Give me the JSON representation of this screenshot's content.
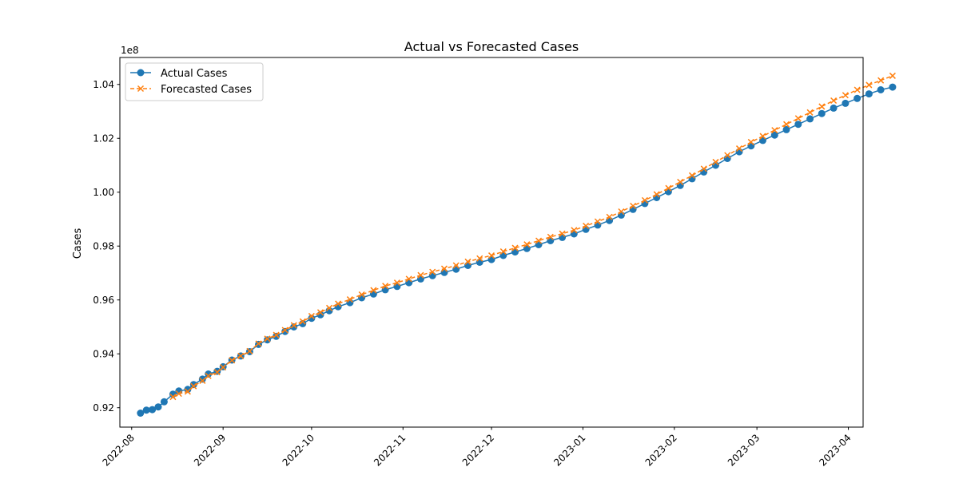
{
  "chart_data": {
    "type": "line",
    "title": "Actual vs Forecasted Cases",
    "xlabel": "",
    "ylabel": "Cases",
    "y_offset_label": "1e8",
    "y_scale": 100000000,
    "x_axis_type": "date",
    "xlim": [
      "2022-07-28",
      "2023-04-06"
    ],
    "ylim": [
      0.9128,
      1.05
    ],
    "x_ticks": [
      "2022-08-01",
      "2022-09-01",
      "2022-10-01",
      "2022-11-01",
      "2022-12-01",
      "2023-01-01",
      "2023-02-01",
      "2023-03-01",
      "2023-04-01"
    ],
    "x_tick_labels": [
      "2022-08",
      "2022-09",
      "2022-10",
      "2022-11",
      "2022-12",
      "2023-01",
      "2023-02",
      "2023-03",
      "2023-04"
    ],
    "y_ticks": [
      0.92,
      0.94,
      0.96,
      0.98,
      1.0,
      1.02,
      1.04
    ],
    "y_tick_labels": [
      "0.92",
      "0.94",
      "0.96",
      "0.98",
      "1.00",
      "1.02",
      "1.04"
    ],
    "grid": false,
    "legend_position": "top-left",
    "colors": {
      "actual": "#1f77b4",
      "forecast": "#ff7f0e"
    },
    "series": [
      {
        "name": "Actual Cases",
        "marker": "o",
        "linestyle": "solid",
        "points": [
          [
            "2022-08-04",
            0.918
          ],
          [
            "2022-08-06",
            0.9191
          ],
          [
            "2022-08-08",
            0.9193
          ],
          [
            "2022-08-10",
            0.9203
          ],
          [
            "2022-08-12",
            0.9222
          ],
          [
            "2022-08-15",
            0.925
          ],
          [
            "2022-08-17",
            0.9262
          ],
          [
            "2022-08-20",
            0.9268
          ],
          [
            "2022-08-22",
            0.9286
          ],
          [
            "2022-08-25",
            0.9306
          ],
          [
            "2022-08-27",
            0.9325
          ],
          [
            "2022-08-30",
            0.9335
          ],
          [
            "2022-09-01",
            0.9352
          ],
          [
            "2022-09-04",
            0.9377
          ],
          [
            "2022-09-07",
            0.9392
          ],
          [
            "2022-09-10",
            0.9408
          ],
          [
            "2022-09-13",
            0.9435
          ],
          [
            "2022-09-16",
            0.9452
          ],
          [
            "2022-09-19",
            0.9465
          ],
          [
            "2022-09-22",
            0.9483
          ],
          [
            "2022-09-25",
            0.95
          ],
          [
            "2022-09-28",
            0.9512
          ],
          [
            "2022-10-01",
            0.9532
          ],
          [
            "2022-10-04",
            0.9545
          ],
          [
            "2022-10-07",
            0.956
          ],
          [
            "2022-10-10",
            0.9575
          ],
          [
            "2022-10-14",
            0.959
          ],
          [
            "2022-10-18",
            0.9608
          ],
          [
            "2022-10-22",
            0.9622
          ],
          [
            "2022-10-26",
            0.9638
          ],
          [
            "2022-10-30",
            0.965
          ],
          [
            "2022-11-03",
            0.9664
          ],
          [
            "2022-11-07",
            0.9678
          ],
          [
            "2022-11-11",
            0.969
          ],
          [
            "2022-11-15",
            0.9702
          ],
          [
            "2022-11-19",
            0.9714
          ],
          [
            "2022-11-23",
            0.9728
          ],
          [
            "2022-11-27",
            0.974
          ],
          [
            "2022-12-01",
            0.975
          ],
          [
            "2022-12-05",
            0.9765
          ],
          [
            "2022-12-09",
            0.9778
          ],
          [
            "2022-12-13",
            0.9791
          ],
          [
            "2022-12-17",
            0.9805
          ],
          [
            "2022-12-21",
            0.982
          ],
          [
            "2022-12-25",
            0.9832
          ],
          [
            "2022-12-29",
            0.9845
          ],
          [
            "2023-01-02",
            0.9862
          ],
          [
            "2023-01-06",
            0.9878
          ],
          [
            "2023-01-10",
            0.9895
          ],
          [
            "2023-01-14",
            0.9915
          ],
          [
            "2023-01-18",
            0.9936
          ],
          [
            "2023-01-22",
            0.9958
          ],
          [
            "2023-01-26",
            0.998
          ],
          [
            "2023-01-30",
            1.0002
          ],
          [
            "2023-02-03",
            1.0025
          ],
          [
            "2023-02-07",
            1.005
          ],
          [
            "2023-02-11",
            1.0075
          ],
          [
            "2023-02-15",
            1.01
          ],
          [
            "2023-02-19",
            1.0125
          ],
          [
            "2023-02-23",
            1.015
          ],
          [
            "2023-02-27",
            1.0172
          ],
          [
            "2023-03-03",
            1.0192
          ],
          [
            "2023-03-07",
            1.0212
          ],
          [
            "2023-03-11",
            1.0232
          ],
          [
            "2023-03-15",
            1.0252
          ],
          [
            "2023-03-19",
            1.0272
          ],
          [
            "2023-03-23",
            1.0292
          ],
          [
            "2023-03-27",
            1.0312
          ],
          [
            "2023-03-31",
            1.033
          ],
          [
            "2023-04-04",
            1.0348
          ],
          [
            "2023-04-08",
            1.0365
          ],
          [
            "2023-04-12",
            1.038
          ],
          [
            "2023-04-16",
            1.039
          ]
        ]
      },
      {
        "name": "Forecasted Cases",
        "marker": "x",
        "linestyle": "dashed",
        "points": [
          [
            "2022-08-15",
            0.924
          ],
          [
            "2022-08-17",
            0.9252
          ],
          [
            "2022-08-20",
            0.926
          ],
          [
            "2022-08-22",
            0.928
          ],
          [
            "2022-08-25",
            0.93
          ],
          [
            "2022-08-27",
            0.9318
          ],
          [
            "2022-08-30",
            0.9332
          ],
          [
            "2022-09-01",
            0.935
          ],
          [
            "2022-09-04",
            0.9376
          ],
          [
            "2022-09-07",
            0.9392
          ],
          [
            "2022-09-10",
            0.941
          ],
          [
            "2022-09-13",
            0.9438
          ],
          [
            "2022-09-16",
            0.9456
          ],
          [
            "2022-09-19",
            0.947
          ],
          [
            "2022-09-22",
            0.9488
          ],
          [
            "2022-09-25",
            0.9506
          ],
          [
            "2022-09-28",
            0.952
          ],
          [
            "2022-10-01",
            0.954
          ],
          [
            "2022-10-04",
            0.9554
          ],
          [
            "2022-10-07",
            0.957
          ],
          [
            "2022-10-10",
            0.9586
          ],
          [
            "2022-10-14",
            0.9602
          ],
          [
            "2022-10-18",
            0.962
          ],
          [
            "2022-10-22",
            0.9636
          ],
          [
            "2022-10-26",
            0.9652
          ],
          [
            "2022-10-30",
            0.9664
          ],
          [
            "2022-11-03",
            0.9678
          ],
          [
            "2022-11-07",
            0.9692
          ],
          [
            "2022-11-11",
            0.9704
          ],
          [
            "2022-11-15",
            0.9716
          ],
          [
            "2022-11-19",
            0.9728
          ],
          [
            "2022-11-23",
            0.9742
          ],
          [
            "2022-11-27",
            0.9754
          ],
          [
            "2022-12-01",
            0.9765
          ],
          [
            "2022-12-05",
            0.978
          ],
          [
            "2022-12-09",
            0.9793
          ],
          [
            "2022-12-13",
            0.9806
          ],
          [
            "2022-12-17",
            0.982
          ],
          [
            "2022-12-21",
            0.9834
          ],
          [
            "2022-12-25",
            0.9846
          ],
          [
            "2022-12-29",
            0.9859
          ],
          [
            "2023-01-02",
            0.9875
          ],
          [
            "2023-01-06",
            0.9891
          ],
          [
            "2023-01-10",
            0.9908
          ],
          [
            "2023-01-14",
            0.9928
          ],
          [
            "2023-01-18",
            0.9949
          ],
          [
            "2023-01-22",
            0.997
          ],
          [
            "2023-01-26",
            0.9992
          ],
          [
            "2023-01-30",
            1.0015
          ],
          [
            "2023-02-03",
            1.0038
          ],
          [
            "2023-02-07",
            1.0062
          ],
          [
            "2023-02-11",
            1.0087
          ],
          [
            "2023-02-15",
            1.0112
          ],
          [
            "2023-02-19",
            1.0137
          ],
          [
            "2023-02-23",
            1.0162
          ],
          [
            "2023-02-27",
            1.0186
          ],
          [
            "2023-03-03",
            1.0208
          ],
          [
            "2023-03-07",
            1.023
          ],
          [
            "2023-03-11",
            1.0252
          ],
          [
            "2023-03-15",
            1.0274
          ],
          [
            "2023-03-19",
            1.0296
          ],
          [
            "2023-03-23",
            1.0318
          ],
          [
            "2023-03-27",
            1.034
          ],
          [
            "2023-03-31",
            1.036
          ],
          [
            "2023-04-04",
            1.038
          ],
          [
            "2023-04-08",
            1.0398
          ],
          [
            "2023-04-12",
            1.0415
          ],
          [
            "2023-04-16",
            1.0432
          ]
        ]
      }
    ]
  }
}
